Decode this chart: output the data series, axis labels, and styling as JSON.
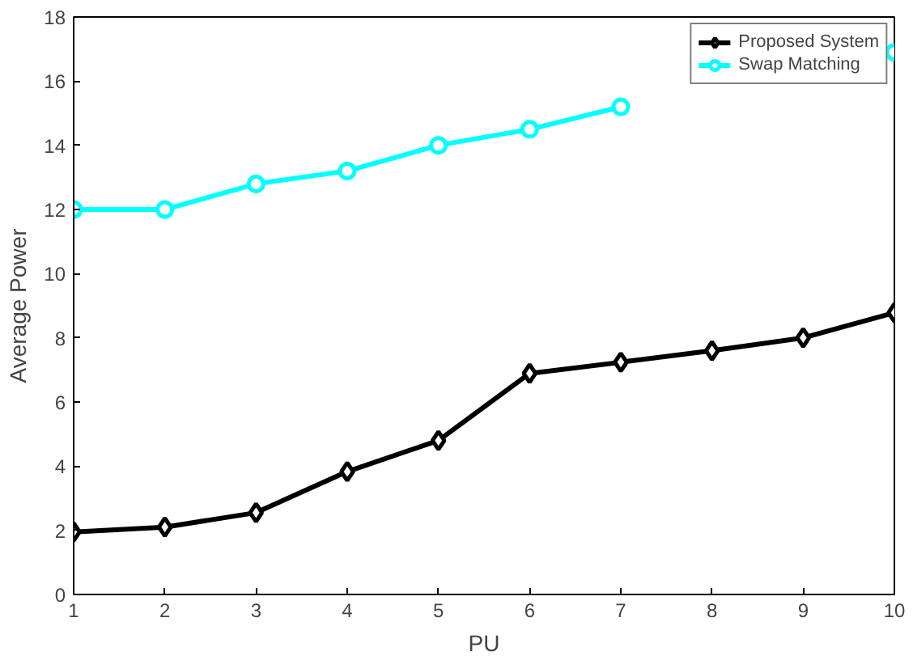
{
  "chart_data": {
    "type": "line",
    "xlabel": "PU",
    "ylabel": "Average Power",
    "x": [
      1,
      2,
      3,
      4,
      5,
      6,
      7,
      8,
      9,
      10
    ],
    "xlim": [
      1,
      10
    ],
    "xticks": [
      1,
      2,
      3,
      4,
      5,
      6,
      7,
      8,
      9,
      10
    ],
    "ylim": [
      0,
      18
    ],
    "yticks": [
      0,
      2,
      4,
      6,
      8,
      10,
      12,
      14,
      16,
      18
    ],
    "grid": false,
    "legend": "top right",
    "series": [
      {
        "name": "Proposed System",
        "color": "#000000",
        "marker": "diamond",
        "values": [
          1.95,
          2.1,
          2.55,
          3.83,
          4.8,
          6.89,
          7.24,
          7.6,
          8.0,
          8.78
        ]
      },
      {
        "name": "Swap Matching",
        "color": "#00ffff",
        "marker": "circle",
        "values": [
          12,
          12,
          12.8,
          13.2,
          14,
          14.5,
          15.2,
          null,
          null,
          16.9
        ]
      }
    ]
  }
}
